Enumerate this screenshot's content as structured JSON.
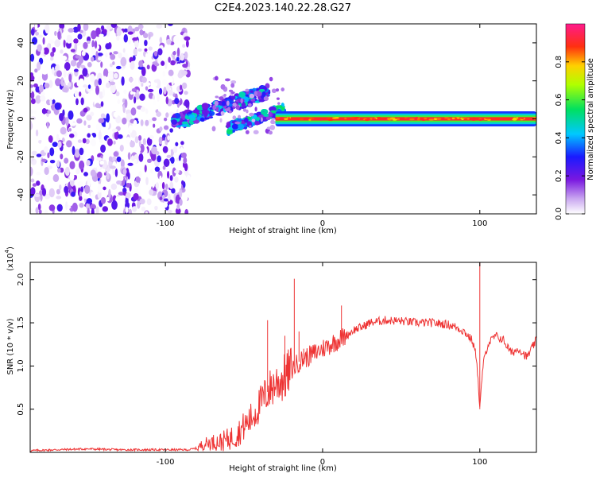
{
  "title": "C2E4.2023.140.22.28.G27",
  "colors": {
    "line": "#ee3333",
    "axis": "#000000",
    "background": "#ffffff"
  },
  "chart_data": [
    {
      "type": "heatmap",
      "xlabel": "Height of straight line (km)",
      "ylabel": "Frequency (Hz)",
      "xlim": [
        -186,
        136
      ],
      "ylim": [
        -50,
        50
      ],
      "xticks": [
        -100,
        0,
        100
      ],
      "yticks": [
        -40,
        -20,
        0,
        20,
        40
      ],
      "colorbar": {
        "label": "Normalized spectral amplitude",
        "range": [
          0,
          1
        ],
        "ticks": [
          0.0,
          0.2,
          0.4,
          0.6,
          0.8
        ],
        "colormap": "white-purple-blue-cyan-green-yellow-orange-red-magenta",
        "placement": "right"
      },
      "features": [
        {
          "x_range": [
            -186,
            -85
          ],
          "y_range": [
            -50,
            50
          ],
          "amplitude": 0.05
        },
        {
          "x_range": [
            -95,
            -35
          ],
          "center_start": -2,
          "center_end": 14,
          "amplitude": 0.4
        },
        {
          "x_range": [
            -60,
            -25
          ],
          "center_start": -5,
          "center_end": 5,
          "amplitude": 0.45
        },
        {
          "x_range": [
            -30,
            136
          ],
          "center": 0,
          "amplitude": 0.9
        }
      ]
    },
    {
      "type": "line",
      "xlabel": "Height of straight line (km)",
      "ylabel": "SNR (10 * v/v)",
      "scale_label": "(x10",
      "scale_exp": "4",
      "xlim": [
        -186,
        136
      ],
      "ylim": [
        0,
        2.2
      ],
      "xticks": [
        -100,
        0,
        100
      ],
      "yticks": [
        0.5,
        1.0,
        1.5,
        2.0
      ],
      "ytick_labels": [
        "0.5",
        "1.0",
        "1.5",
        "2.0"
      ],
      "grid": false,
      "series": [
        {
          "color": "#ee3333",
          "points": [
            [
              -186,
              0.02
            ],
            [
              -170,
              0.03
            ],
            [
              -150,
              0.04
            ],
            [
              -130,
              0.03
            ],
            [
              -110,
              0.03
            ],
            [
              -95,
              0.03
            ],
            [
              -85,
              0.03
            ],
            [
              -80,
              0.05
            ],
            [
              -75,
              0.1
            ],
            [
              -70,
              0.12
            ],
            [
              -65,
              0.12
            ],
            [
              -60,
              0.15
            ],
            [
              -55,
              0.2
            ],
            [
              -50,
              0.3
            ],
            [
              -45,
              0.4
            ],
            [
              -40,
              0.55
            ],
            [
              -35,
              0.7
            ],
            [
              -30,
              0.8
            ],
            [
              -25,
              0.85
            ],
            [
              -20,
              0.95
            ],
            [
              -15,
              1.05
            ],
            [
              -10,
              1.1
            ],
            [
              -5,
              1.15
            ],
            [
              0,
              1.2
            ],
            [
              5,
              1.25
            ],
            [
              10,
              1.3
            ],
            [
              15,
              1.35
            ],
            [
              20,
              1.42
            ],
            [
              25,
              1.45
            ],
            [
              30,
              1.5
            ],
            [
              40,
              1.53
            ],
            [
              50,
              1.52
            ],
            [
              60,
              1.5
            ],
            [
              70,
              1.5
            ],
            [
              80,
              1.48
            ],
            [
              85,
              1.45
            ],
            [
              90,
              1.4
            ],
            [
              95,
              1.3
            ],
            [
              98,
              1.1
            ],
            [
              100,
              0.5
            ],
            [
              102,
              1.0
            ],
            [
              105,
              1.25
            ],
            [
              110,
              1.35
            ],
            [
              115,
              1.3
            ],
            [
              120,
              1.15
            ],
            [
              125,
              1.2
            ],
            [
              130,
              1.1
            ],
            [
              136,
              1.3
            ]
          ],
          "spikes": [
            [
              -35,
              1.53
            ],
            [
              -24,
              1.35
            ],
            [
              -18,
              2.01
            ],
            [
              -15,
              1.4
            ],
            [
              -12,
              1.2
            ],
            [
              -4,
              1.1
            ],
            [
              12,
              1.7
            ],
            [
              20,
              1.4
            ],
            [
              100,
              2.2
            ]
          ]
        }
      ]
    }
  ]
}
